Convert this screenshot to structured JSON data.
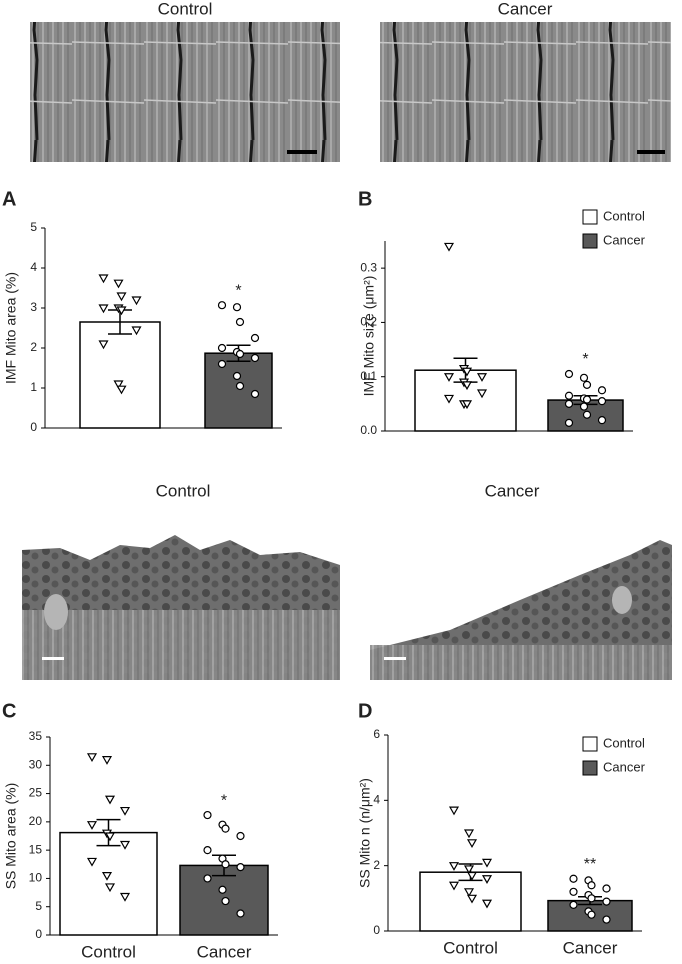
{
  "images": [
    {
      "label": "Control"
    },
    {
      "label": "Cancer"
    },
    {
      "label": "Control"
    },
    {
      "label": "Cancer"
    }
  ],
  "chart_data": [
    {
      "panel": "A",
      "type": "bar",
      "ylabel": "IMF Mito area (%)",
      "categories": [
        null,
        null
      ],
      "values": [
        2.65,
        1.87
      ],
      "errors": [
        0.3,
        0.2
      ],
      "colors": [
        "#ffffff",
        "#595959"
      ],
      "markers": [
        "triangle-down",
        "circle"
      ],
      "points": [
        [
          3.75,
          3.62,
          3.3,
          3.2,
          3.0,
          3.0,
          2.95,
          2.45,
          2.1,
          1.1,
          0.97
        ],
        [
          3.07,
          3.02,
          2.65,
          2.25,
          2.0,
          1.9,
          1.85,
          1.75,
          1.6,
          1.3,
          1.05,
          0.85
        ]
      ],
      "significance": [
        null,
        "*"
      ],
      "ylim": [
        0,
        5
      ],
      "yticks": [
        0,
        1,
        2,
        3,
        4,
        5
      ]
    },
    {
      "panel": "B",
      "type": "bar",
      "ylabel": "IMF Mito size (μm²)",
      "categories": [
        null,
        null
      ],
      "values": [
        0.112,
        0.057
      ],
      "errors": [
        0.022,
        0.008
      ],
      "colors": [
        "#ffffff",
        "#595959"
      ],
      "markers": [
        "triangle-down",
        "circle"
      ],
      "points": [
        [
          0.34,
          0.115,
          0.11,
          0.1,
          0.1,
          0.09,
          0.085,
          0.07,
          0.06,
          0.05,
          0.05
        ],
        [
          0.105,
          0.098,
          0.085,
          0.075,
          0.065,
          0.06,
          0.058,
          0.055,
          0.05,
          0.045,
          0.03,
          0.02,
          0.015
        ]
      ],
      "significance": [
        null,
        "*"
      ],
      "ylim": [
        0,
        0.35
      ],
      "yticks": [
        {
          "value": 0,
          "label": "0.0"
        },
        0.1,
        0.2,
        0.3
      ],
      "legend_labels": [
        "Control",
        "Cancer"
      ],
      "legend": "upper right"
    },
    {
      "panel": "C",
      "type": "bar",
      "ylabel": "SS Mito area (%)",
      "categories": [
        "Control",
        "Cancer"
      ],
      "values": [
        18.1,
        12.3
      ],
      "errors": [
        2.3,
        1.8
      ],
      "colors": [
        "#ffffff",
        "#595959"
      ],
      "markers": [
        "triangle-down",
        "circle"
      ],
      "points": [
        [
          31.5,
          31,
          24,
          22,
          19.5,
          18,
          17.5,
          16,
          13,
          10.5,
          8.5,
          6.8
        ],
        [
          21.2,
          19.5,
          18.8,
          17.5,
          15,
          13.5,
          12.5,
          12,
          10,
          8,
          6,
          3.8
        ]
      ],
      "significance": [
        null,
        "*"
      ],
      "ylim": [
        0,
        35
      ],
      "yticks": [
        0,
        5,
        10,
        15,
        20,
        25,
        30,
        35
      ]
    },
    {
      "panel": "D",
      "type": "bar",
      "ylabel": "SS Mito n (n/μm²)",
      "categories": [
        "Control",
        "Cancer"
      ],
      "values": [
        1.8,
        0.93
      ],
      "errors": [
        0.25,
        0.12
      ],
      "colors": [
        "#ffffff",
        "#595959"
      ],
      "markers": [
        "triangle-down",
        "circle"
      ],
      "points": [
        [
          3.7,
          3.0,
          2.7,
          2.1,
          2.0,
          1.9,
          1.7,
          1.6,
          1.4,
          1.2,
          1.0,
          0.85
        ],
        [
          1.6,
          1.55,
          1.4,
          1.3,
          1.2,
          1.1,
          1.0,
          0.9,
          0.8,
          0.6,
          0.5,
          0.35
        ]
      ],
      "significance": [
        null,
        "**"
      ],
      "ylim": [
        0,
        6
      ],
      "yticks": [
        0,
        2,
        4,
        6
      ],
      "legend_labels": [
        "Control",
        "Cancer"
      ],
      "legend": "upper right"
    }
  ]
}
